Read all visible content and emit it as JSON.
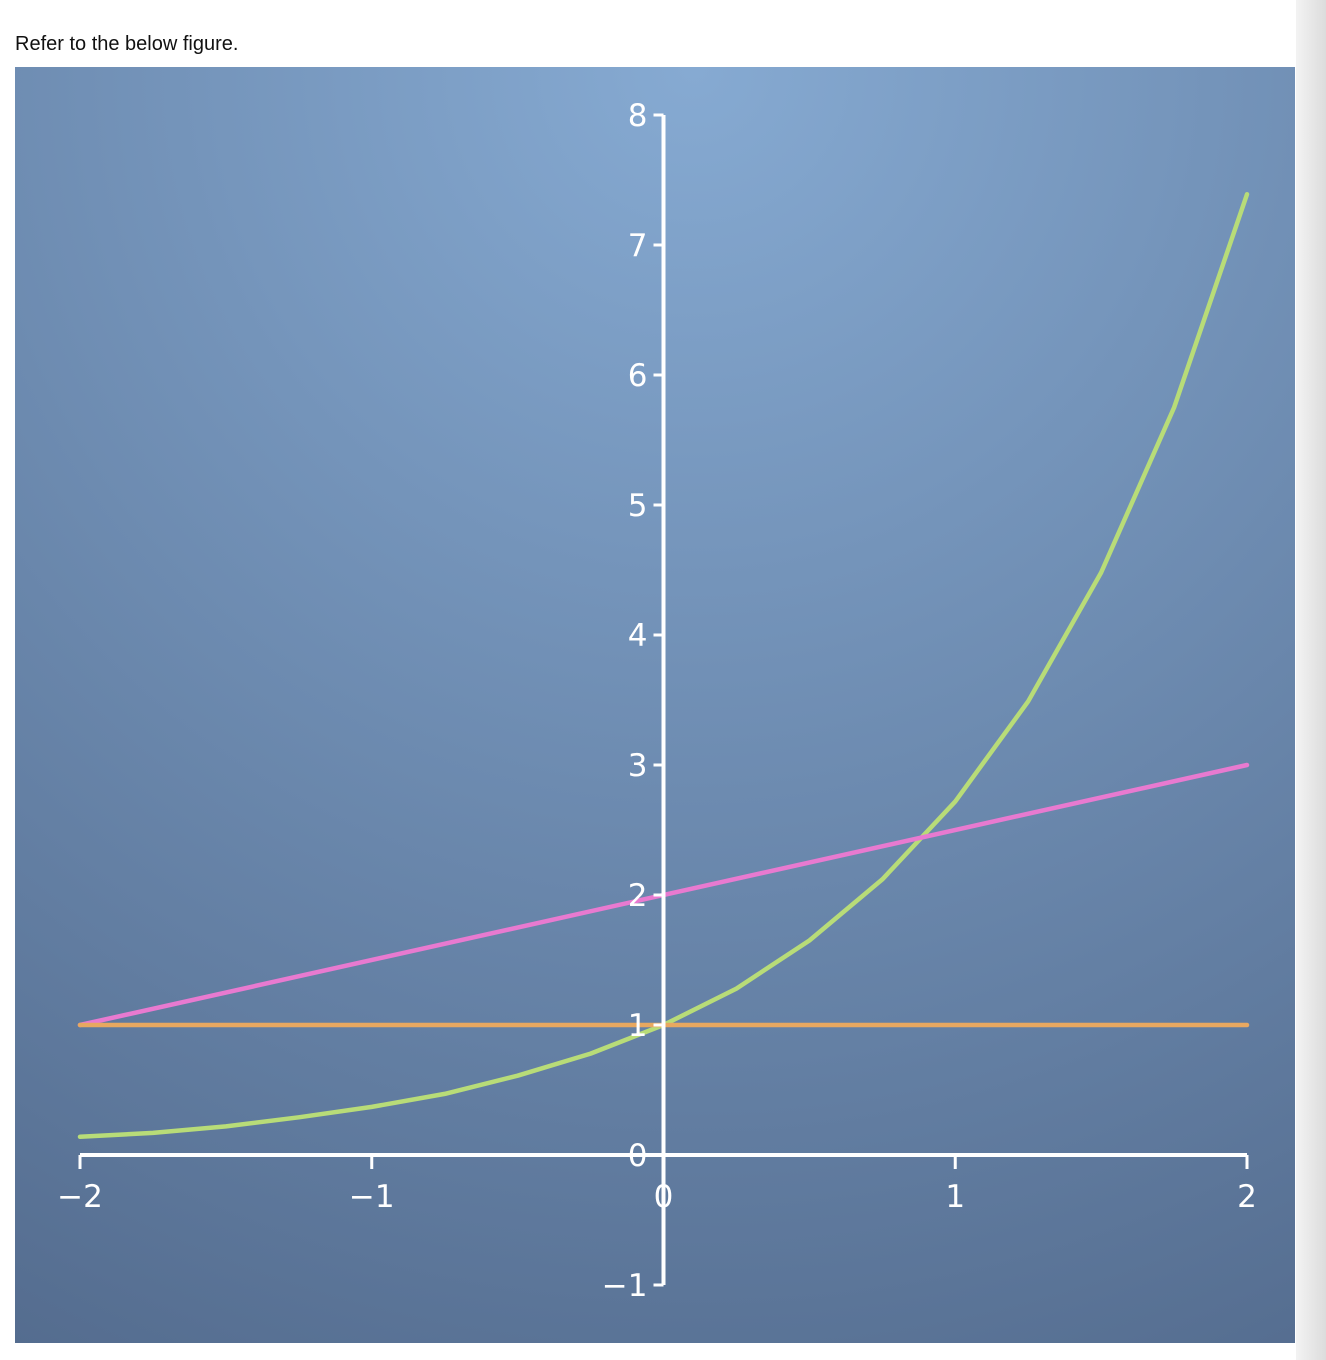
{
  "prompt": {
    "text": "Refer to the below figure."
  },
  "chart_data": {
    "type": "line",
    "title": "",
    "xlabel": "",
    "ylabel": "",
    "xlim": [
      -2,
      2
    ],
    "ylim": [
      -1,
      8
    ],
    "x_ticks": [
      -2,
      -1,
      0,
      1,
      2
    ],
    "y_ticks": [
      -1,
      0,
      1,
      2,
      3,
      4,
      5,
      6,
      7,
      8
    ],
    "x_tick_labels": [
      "−2",
      "−1",
      "0",
      "1",
      "2"
    ],
    "y_tick_labels": [
      "−1",
      "0",
      "1",
      "2",
      "3",
      "4",
      "5",
      "6",
      "7",
      "8"
    ],
    "axes_style": "centered at origin",
    "grid": false,
    "legend": "none",
    "series": [
      {
        "color": "#b8dc78",
        "x": [
          -2,
          -1.75,
          -1.5,
          -1.25,
          -1,
          -0.75,
          -0.5,
          -0.25,
          0,
          0.25,
          0.5,
          0.75,
          1,
          1.25,
          1.5,
          1.75,
          2
        ],
        "y": [
          0.14,
          0.17,
          0.22,
          0.29,
          0.37,
          0.47,
          0.61,
          0.78,
          1.0,
          1.28,
          1.65,
          2.12,
          2.72,
          3.49,
          4.48,
          5.75,
          7.39
        ]
      },
      {
        "color": "#e87ad0",
        "x": [
          -2,
          2
        ],
        "y": [
          1,
          3
        ]
      },
      {
        "color": "#e8a860",
        "x": [
          -2,
          2
        ],
        "y": [
          1,
          1
        ]
      }
    ],
    "colors": {
      "bg_light": "#86aad2",
      "bg_dark": "#4f6688",
      "axis": "#ffffff"
    }
  }
}
